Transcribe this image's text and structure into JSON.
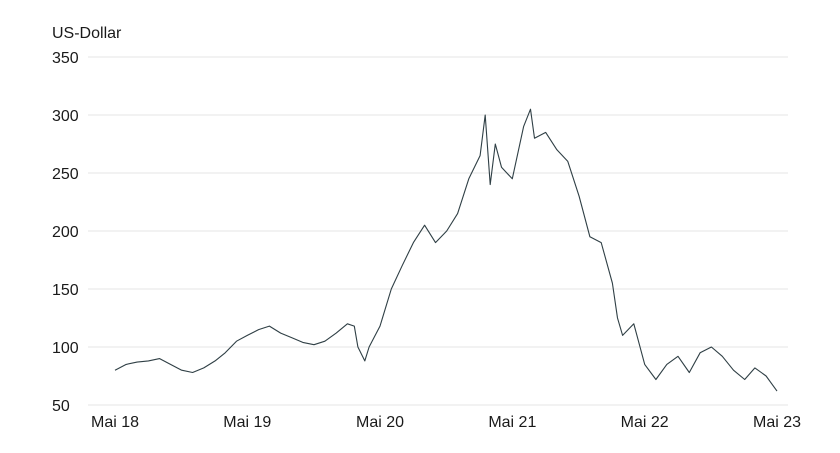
{
  "chart_data": {
    "type": "line",
    "ylabel": "US-Dollar",
    "ylim": [
      50,
      350
    ],
    "yticks": [
      50,
      100,
      150,
      200,
      250,
      300,
      350
    ],
    "xlim": [
      "2018-05-01",
      "2023-05-01"
    ],
    "xticks": [
      {
        "date": "2018-05-01",
        "label": "Mai 18"
      },
      {
        "date": "2019-05-01",
        "label": "Mai 19"
      },
      {
        "date": "2020-05-01",
        "label": "Mai 20"
      },
      {
        "date": "2021-05-01",
        "label": "Mai 21"
      },
      {
        "date": "2022-05-01",
        "label": "Mai 22"
      },
      {
        "date": "2023-05-01",
        "label": "Mai 23"
      }
    ],
    "grid": true,
    "colors": {
      "line": "#2f3f45",
      "grid": "#e6e6e6",
      "text": "#1a1a1a"
    },
    "series": [
      {
        "points": [
          [
            "2018-05-01",
            80
          ],
          [
            "2018-06-01",
            85
          ],
          [
            "2018-07-01",
            87
          ],
          [
            "2018-08-01",
            88
          ],
          [
            "2018-09-01",
            90
          ],
          [
            "2018-10-01",
            85
          ],
          [
            "2018-11-01",
            80
          ],
          [
            "2018-12-01",
            78
          ],
          [
            "2019-01-01",
            82
          ],
          [
            "2019-02-01",
            88
          ],
          [
            "2019-03-01",
            95
          ],
          [
            "2019-04-01",
            105
          ],
          [
            "2019-05-01",
            110
          ],
          [
            "2019-06-01",
            115
          ],
          [
            "2019-07-01",
            118
          ],
          [
            "2019-08-01",
            112
          ],
          [
            "2019-09-01",
            108
          ],
          [
            "2019-10-01",
            104
          ],
          [
            "2019-11-01",
            102
          ],
          [
            "2019-12-01",
            105
          ],
          [
            "2020-01-01",
            112
          ],
          [
            "2020-02-01",
            120
          ],
          [
            "2020-02-20",
            118
          ],
          [
            "2020-03-01",
            100
          ],
          [
            "2020-03-20",
            88
          ],
          [
            "2020-04-01",
            100
          ],
          [
            "2020-05-01",
            118
          ],
          [
            "2020-06-01",
            150
          ],
          [
            "2020-07-01",
            170
          ],
          [
            "2020-08-01",
            190
          ],
          [
            "2020-09-01",
            205
          ],
          [
            "2020-10-01",
            190
          ],
          [
            "2020-11-01",
            200
          ],
          [
            "2020-12-01",
            215
          ],
          [
            "2021-01-01",
            245
          ],
          [
            "2021-02-01",
            265
          ],
          [
            "2021-02-15",
            300
          ],
          [
            "2021-03-01",
            240
          ],
          [
            "2021-03-15",
            275
          ],
          [
            "2021-04-01",
            255
          ],
          [
            "2021-05-01",
            245
          ],
          [
            "2021-06-01",
            290
          ],
          [
            "2021-06-20",
            305
          ],
          [
            "2021-07-01",
            280
          ],
          [
            "2021-08-01",
            285
          ],
          [
            "2021-09-01",
            270
          ],
          [
            "2021-10-01",
            260
          ],
          [
            "2021-11-01",
            230
          ],
          [
            "2021-12-01",
            195
          ],
          [
            "2022-01-01",
            190
          ],
          [
            "2022-02-01",
            155
          ],
          [
            "2022-02-15",
            125
          ],
          [
            "2022-03-01",
            110
          ],
          [
            "2022-04-01",
            120
          ],
          [
            "2022-05-01",
            85
          ],
          [
            "2022-06-01",
            72
          ],
          [
            "2022-07-01",
            85
          ],
          [
            "2022-08-01",
            92
          ],
          [
            "2022-09-01",
            78
          ],
          [
            "2022-10-01",
            95
          ],
          [
            "2022-11-01",
            100
          ],
          [
            "2022-12-01",
            92
          ],
          [
            "2023-01-01",
            80
          ],
          [
            "2023-02-01",
            72
          ],
          [
            "2023-03-01",
            82
          ],
          [
            "2023-04-01",
            75
          ],
          [
            "2023-05-01",
            62
          ]
        ]
      }
    ]
  }
}
